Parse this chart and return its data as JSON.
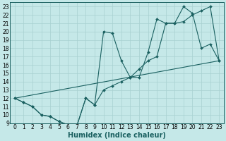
{
  "xlabel": "Humidex (Indice chaleur)",
  "ylabel": "",
  "bg_color": "#c5e8e8",
  "grid_color": "#a8d0d0",
  "line_color": "#1a6060",
  "marker_color": "#1a6060",
  "xlim": [
    -0.5,
    23.5
  ],
  "ylim": [
    9,
    23.5
  ],
  "xticks": [
    0,
    1,
    2,
    3,
    4,
    5,
    6,
    7,
    8,
    9,
    10,
    11,
    12,
    13,
    14,
    15,
    16,
    17,
    18,
    19,
    20,
    21,
    22,
    23
  ],
  "yticks": [
    9,
    10,
    11,
    12,
    13,
    14,
    15,
    16,
    17,
    18,
    19,
    20,
    21,
    22,
    23
  ],
  "series1_x": [
    0,
    1,
    2,
    3,
    4,
    5,
    6,
    7,
    8,
    9,
    10,
    11,
    12,
    13,
    14,
    15,
    16,
    17,
    18,
    19,
    20,
    21,
    22,
    23
  ],
  "series1_y": [
    12,
    11.5,
    11.0,
    10.0,
    9.8,
    9.2,
    8.8,
    8.7,
    12.0,
    11.2,
    13.0,
    13.5,
    14.0,
    14.5,
    15.5,
    16.5,
    17.0,
    21.0,
    21.0,
    21.2,
    22.0,
    22.5,
    23.0,
    16.5
  ],
  "series2_x": [
    0,
    1,
    2,
    3,
    4,
    5,
    6,
    7,
    8,
    9,
    10,
    11,
    12,
    13,
    14,
    15,
    16,
    17,
    18,
    19,
    20,
    21,
    22,
    23
  ],
  "series2_y": [
    12,
    11.5,
    11.0,
    10.0,
    9.8,
    9.2,
    8.8,
    8.7,
    12.0,
    11.2,
    20.0,
    19.8,
    16.5,
    14.5,
    14.5,
    17.5,
    21.5,
    21.0,
    21.0,
    23.0,
    22.2,
    18.0,
    18.5,
    16.5
  ],
  "series3_x": [
    0,
    23
  ],
  "series3_y": [
    12,
    16.5
  ],
  "fontsize_ticks": 5.5,
  "fontsize_xlabel": 7
}
